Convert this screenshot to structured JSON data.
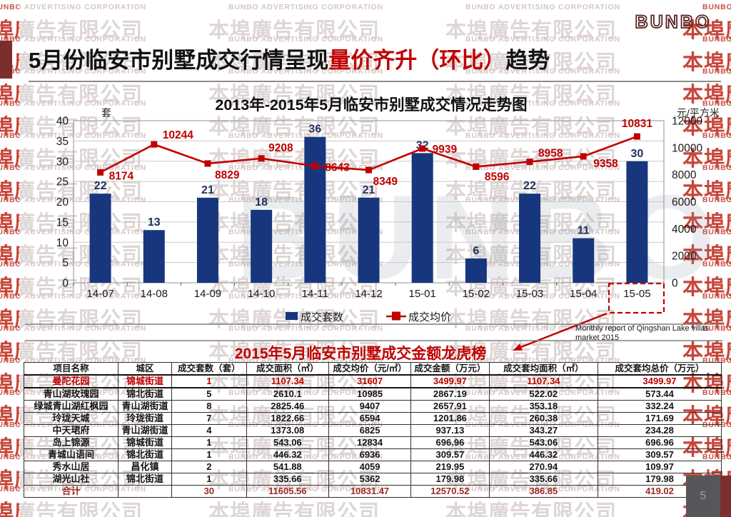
{
  "watermark": {
    "cn": "本埠廣告有限公司",
    "en": "BUNBO ADVERTISING CORPORATION",
    "giant_letters": "BUNBO"
  },
  "logo_text": "BUNBO",
  "header": {
    "title_part1": "5月份临安市别墅成交行情呈现",
    "title_accent": "量价齐升（环比）",
    "title_part2": "趋势",
    "accent_color": "#c00000"
  },
  "chart_data": {
    "type": "bar+line",
    "title": "2013年-2015年5月临安市别墅成交情况走势图",
    "left_axis": {
      "unit": "套",
      "min": 0,
      "max": 40,
      "step": 5
    },
    "right_axis": {
      "unit": "元/平方米",
      "min": 0,
      "max": 12000,
      "step": 2000
    },
    "categories": [
      "14-07",
      "14-08",
      "14-09",
      "14-10",
      "14-11",
      "14-12",
      "15-01",
      "15-02",
      "15-03",
      "15-04",
      "15-05"
    ],
    "series": [
      {
        "name": "成交套数",
        "type": "bar",
        "axis": "left",
        "color": "#17367d",
        "values": [
          22,
          13,
          21,
          18,
          36,
          21,
          32,
          6,
          22,
          11,
          30
        ]
      },
      {
        "name": "成交均价",
        "type": "line",
        "axis": "right",
        "color": "#c00000",
        "values": [
          8174,
          10244,
          8829,
          9208,
          8643,
          8349,
          9939,
          8596,
          8958,
          9358,
          10831
        ]
      }
    ],
    "grid": true,
    "legend_position": "bottom",
    "highlight": {
      "category": "15-05",
      "style": "red-dashed-box-with-arrow"
    }
  },
  "note": {
    "line1": "Monthly  report of Qingshan  Lake villas",
    "line2": "market 2015"
  },
  "table": {
    "title": "2015年5月临安市别墅成交金额龙虎榜",
    "headers": [
      "项目名称",
      "城区",
      "成交套数（套）",
      "成交面积（㎡）",
      "成交均价（元/㎡）",
      "成交金额（万元）",
      "成交套均面积（㎡）",
      "成交套均总价（万元）"
    ],
    "rows": [
      [
        "曼陀花园",
        "锦城街道",
        "1",
        "1107.34",
        "31607",
        "3499.97",
        "1107.34",
        "3499.97"
      ],
      [
        "青山湖玫瑰园",
        "锦北街道",
        "5",
        "2610.1",
        "10985",
        "2867.19",
        "522.02",
        "573.44"
      ],
      [
        "绿城青山湖红枫园",
        "青山湖街道",
        "8",
        "2825.46",
        "9407",
        "2657.91",
        "353.18",
        "332.24"
      ],
      [
        "玲珑天城",
        "玲珑街道",
        "7",
        "1822.66",
        "6594",
        "1201.86",
        "260.38",
        "171.69"
      ],
      [
        "中天珺府",
        "青山湖街道",
        "4",
        "1373.08",
        "6825",
        "937.13",
        "343.27",
        "234.28"
      ],
      [
        "岛上锦源",
        "锦城街道",
        "1",
        "543.06",
        "12834",
        "696.96",
        "543.06",
        "696.96"
      ],
      [
        "青城山语间",
        "锦北街道",
        "1",
        "446.32",
        "6936",
        "309.57",
        "446.32",
        "309.57"
      ],
      [
        "秀水山居",
        "昌化镇",
        "2",
        "541.88",
        "4059",
        "219.95",
        "270.94",
        "109.97"
      ],
      [
        "湖光山社",
        "锦北街道",
        "1",
        "335.66",
        "5362",
        "179.98",
        "335.66",
        "179.98"
      ]
    ],
    "total": [
      "合计",
      "",
      "30",
      "11605.56",
      "10831.47",
      "12570.52",
      "386.85",
      "419.02"
    ],
    "highlight_row": "曼陀花园"
  },
  "footer": {
    "page": "5"
  }
}
